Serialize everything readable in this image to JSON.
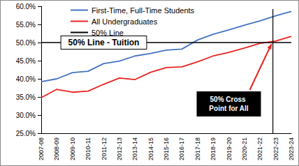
{
  "chart_data": {
    "type": "line",
    "categories": [
      "2007-08",
      "2008-09",
      "2009-10",
      "2010-11",
      "2011-12",
      "2012-13",
      "2013-14",
      "2014-15",
      "2015-16",
      "2016-17",
      "2017-18",
      "2018-19",
      "2019-20",
      "2020-21",
      "2021-22",
      "2022-23",
      "2023-24"
    ],
    "series": [
      {
        "name": "First-Time, Full-Time Students",
        "color": "#4472c4",
        "values": [
          39.2,
          40.0,
          41.7,
          42.1,
          44.2,
          44.9,
          46.3,
          47.0,
          47.9,
          48.2,
          50.7,
          52.3,
          53.5,
          54.8,
          56.0,
          57.4,
          58.6
        ]
      },
      {
        "name": "All Undergraduates",
        "color": "#e8231e",
        "values": [
          34.8,
          37.1,
          36.3,
          36.6,
          38.5,
          40.2,
          39.8,
          41.8,
          43.1,
          43.3,
          44.7,
          46.3,
          47.3,
          48.5,
          49.8,
          50.4,
          51.7
        ]
      },
      {
        "name": "50% Line",
        "color": "#000000",
        "values": [
          50,
          50,
          50,
          50,
          50,
          50,
          50,
          50,
          50,
          50,
          50,
          50,
          50,
          50,
          50,
          50,
          50
        ]
      }
    ],
    "ylim": [
      25,
      60
    ],
    "yticks": [
      {
        "value": 25,
        "label": "25.0%"
      },
      {
        "value": 30,
        "label": "30.0%"
      },
      {
        "value": 35,
        "label": "35.0%"
      },
      {
        "value": 40,
        "label": "40.0%"
      },
      {
        "value": 45,
        "label": "45.0%"
      },
      {
        "value": 50,
        "label": "50.0%"
      },
      {
        "value": 55,
        "label": "55.0%"
      },
      {
        "value": 60,
        "label": "60.0%"
      }
    ],
    "annotations": [
      "50% Line - Tuition",
      "50% Cross Point for All"
    ],
    "grid": false,
    "legend": "upper left"
  }
}
